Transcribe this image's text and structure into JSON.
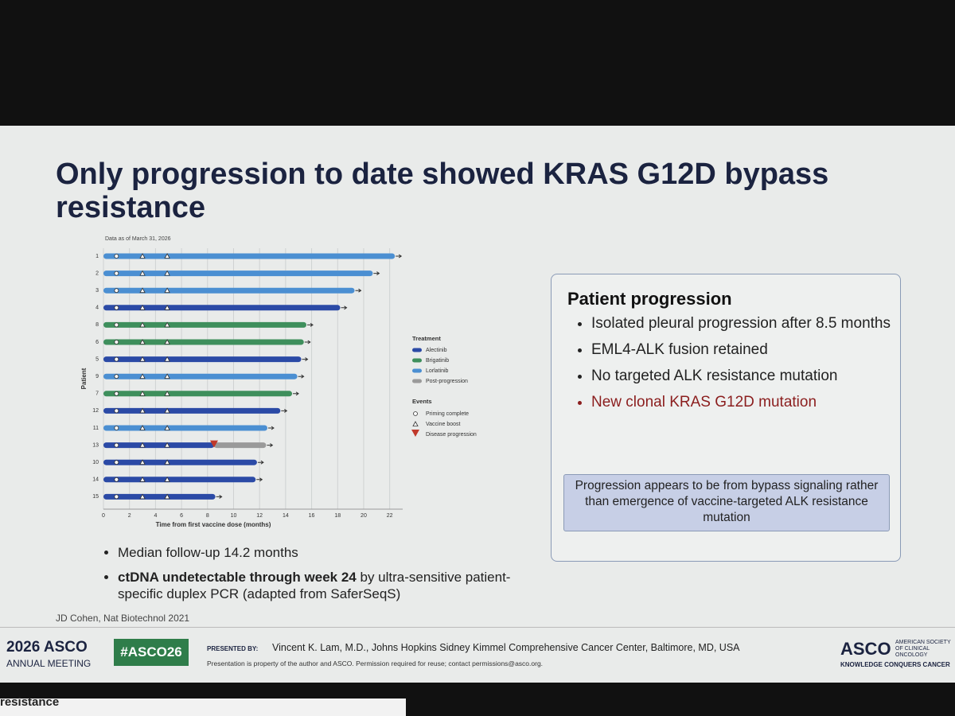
{
  "slide": {
    "title": "Only progression to date showed KRAS G12D bypass resistance",
    "box_heading": "Patient progression",
    "box_bullets": [
      "Isolated pleural progression after 8.5 months",
      "EML4-ALK fusion retained",
      "No targeted ALK resistance mutation"
    ],
    "box_highlight": "New clonal KRAS G12D mutation",
    "callout": "Progression appears to be from bypass signaling rather than emergence of vaccine-targeted ALK resistance mutation",
    "bullet_1": "Median follow-up 14.2 months",
    "bullet_2_bold": "ctDNA undetectable through week 24",
    "bullet_2_rest": " by ultra-sensitive patient-specific duplex PCR (adapted from SaferSeqS)",
    "citation": "JD Cohen, Nat Biotechnol 2021",
    "footer_year_asco": "2026 ASCO",
    "footer_meeting": "ANNUAL MEETING",
    "footer_hashtag": "#ASCO26",
    "presented_by": "PRESENTED BY:",
    "presenter": "Vincent K. Lam, M.D., Johns Hopkins Sidney Kimmel Comprehensive Cancer Center, Baltimore, MD, USA",
    "property_note": "Presentation is property of the author and ASCO. Permission required for reuse; contact permissions@asco.org.",
    "logo": "ASCO",
    "logo_society": "AMERICAN SOCIETY OF CLINICAL ONCOLOGY",
    "logo_tagline": "KNOWLEDGE CONQUERS CANCER",
    "next_screen": "resistance"
  },
  "chart_data": {
    "type": "swimmer",
    "note": "Data as of March 31, 2026",
    "x_label": "Time from first vaccine dose (months)",
    "y_label": "Patient",
    "categories": [
      "1",
      "2",
      "3",
      "4",
      "8",
      "6",
      "5",
      "9",
      "7",
      "12",
      "11",
      "13",
      "10",
      "14",
      "15"
    ],
    "xlim": [
      0,
      23
    ],
    "xticks": [
      0,
      2,
      4,
      6,
      8,
      10,
      12,
      14,
      16,
      18,
      20,
      22
    ],
    "grid": true,
    "legend_title": "Treatment",
    "series": [
      {
        "name": "Alectinib",
        "color": "#2b4aa6",
        "values": [
          null,
          null,
          null,
          18.2,
          null,
          null,
          15.2,
          null,
          null,
          13.6,
          null,
          8.5,
          11.8,
          11.7,
          8.6
        ]
      },
      {
        "name": "Brigatinib",
        "color": "#3e8f5c",
        "values": [
          null,
          null,
          null,
          null,
          15.6,
          15.4,
          null,
          null,
          14.5,
          null,
          null,
          null,
          null,
          null,
          null
        ]
      },
      {
        "name": "Lorlatinib",
        "color": "#4b8fd2",
        "values": [
          22.4,
          20.7,
          19.3,
          null,
          null,
          null,
          null,
          14.9,
          null,
          null,
          12.6,
          null,
          null,
          null,
          null
        ]
      },
      {
        "name": "Post-progression",
        "color": "#9a9a9a",
        "values": [
          null,
          null,
          null,
          null,
          null,
          null,
          null,
          null,
          null,
          null,
          null,
          4.0,
          null,
          null,
          null
        ]
      }
    ],
    "events_title": "Events",
    "events": [
      {
        "name": "Priming complete",
        "marker": "circle",
        "color": "#ffffff",
        "values": [
          1,
          1,
          1,
          1,
          1,
          1,
          1,
          1,
          1,
          1,
          1,
          1,
          1,
          1,
          1
        ]
      },
      {
        "name": "Vaccine boost",
        "marker": "triangle",
        "color": "#ffffff",
        "values": [
          [
            3,
            4.9
          ],
          [
            3,
            4.9
          ],
          [
            3,
            4.9
          ],
          [
            3,
            4.9
          ],
          [
            3,
            4.9
          ],
          [
            3,
            4.9
          ],
          [
            3,
            4.9
          ],
          [
            3,
            4.9
          ],
          [
            3,
            4.9
          ],
          [
            3,
            4.9
          ],
          [
            3,
            4.9
          ],
          [
            3,
            4.9
          ],
          [
            3,
            4.9
          ],
          [
            3,
            4.9
          ],
          [
            3,
            4.9
          ]
        ]
      },
      {
        "name": "Disease progression",
        "marker": "triangle-down",
        "color": "#c0392b",
        "values": [
          null,
          null,
          null,
          null,
          null,
          null,
          null,
          null,
          null,
          null,
          null,
          8.5,
          null,
          null,
          null
        ]
      }
    ]
  }
}
